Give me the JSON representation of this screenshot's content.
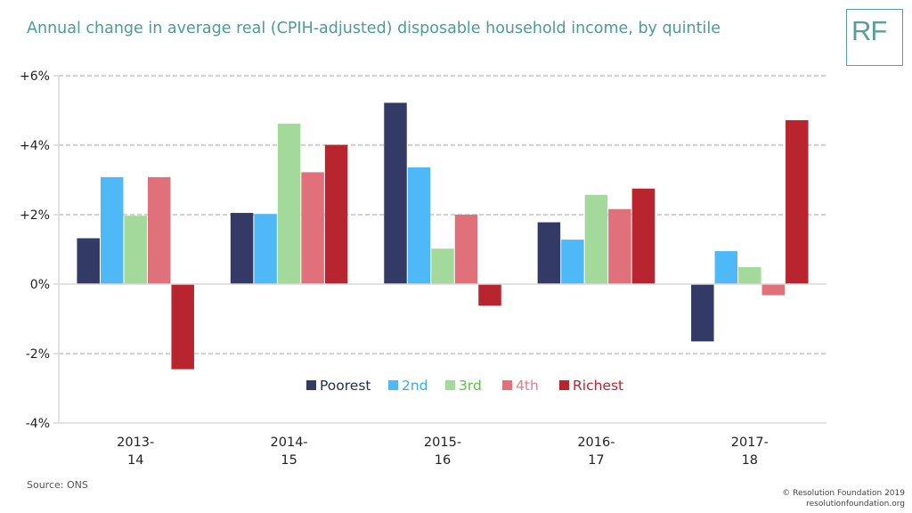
{
  "header": {
    "title": "Annual change in average real (CPIH-adjusted) disposable household income, by quintile",
    "logo_text": "RF"
  },
  "footer": {
    "source": "Source: ONS",
    "copyright_line1": "© Resolution Foundation 2019",
    "copyright_line2": "resolutionfoundation.org"
  },
  "colors": {
    "title": "#4d9a99",
    "grid": "#a6a6a6",
    "axis": "#d9d9d9"
  },
  "chart_data": {
    "type": "bar",
    "categories": [
      [
        "2013-",
        "14"
      ],
      [
        "2014-",
        "15"
      ],
      [
        "2015-",
        "16"
      ],
      [
        "2016-",
        "17"
      ],
      [
        "2017-",
        "18"
      ]
    ],
    "ylim": [
      -4,
      6
    ],
    "ytick_values": [
      6,
      4,
      2,
      0,
      -2,
      -4
    ],
    "ytick_labels": [
      "+6%",
      "+4%",
      "+2%",
      "0%",
      "-2%",
      "-4%"
    ],
    "grid": "horizontal dashed",
    "legend_position": "lower center, inside plot",
    "series": [
      {
        "name": "Poorest",
        "color": "#333a66",
        "legend_text_color": "#1f2a4d",
        "values": [
          1.32,
          2.05,
          5.22,
          1.78,
          -1.65
        ]
      },
      {
        "name": "2nd",
        "color": "#4fb9f7",
        "legend_text_color": "#3ea9ea",
        "values": [
          3.08,
          2.02,
          3.36,
          1.28,
          0.95
        ]
      },
      {
        "name": "3rd",
        "color": "#a3d99a",
        "legend_text_color": "#5cbf4d",
        "values": [
          1.97,
          4.62,
          1.02,
          2.57,
          0.49
        ]
      },
      {
        "name": "4th",
        "color": "#e0717b",
        "legend_text_color": "#e07e88",
        "values": [
          3.08,
          3.22,
          2.0,
          2.16,
          -0.32
        ]
      },
      {
        "name": "Richest",
        "color": "#b8252f",
        "legend_text_color": "#b8252f",
        "values": [
          -2.45,
          4.01,
          -0.62,
          2.75,
          4.72
        ]
      }
    ]
  }
}
